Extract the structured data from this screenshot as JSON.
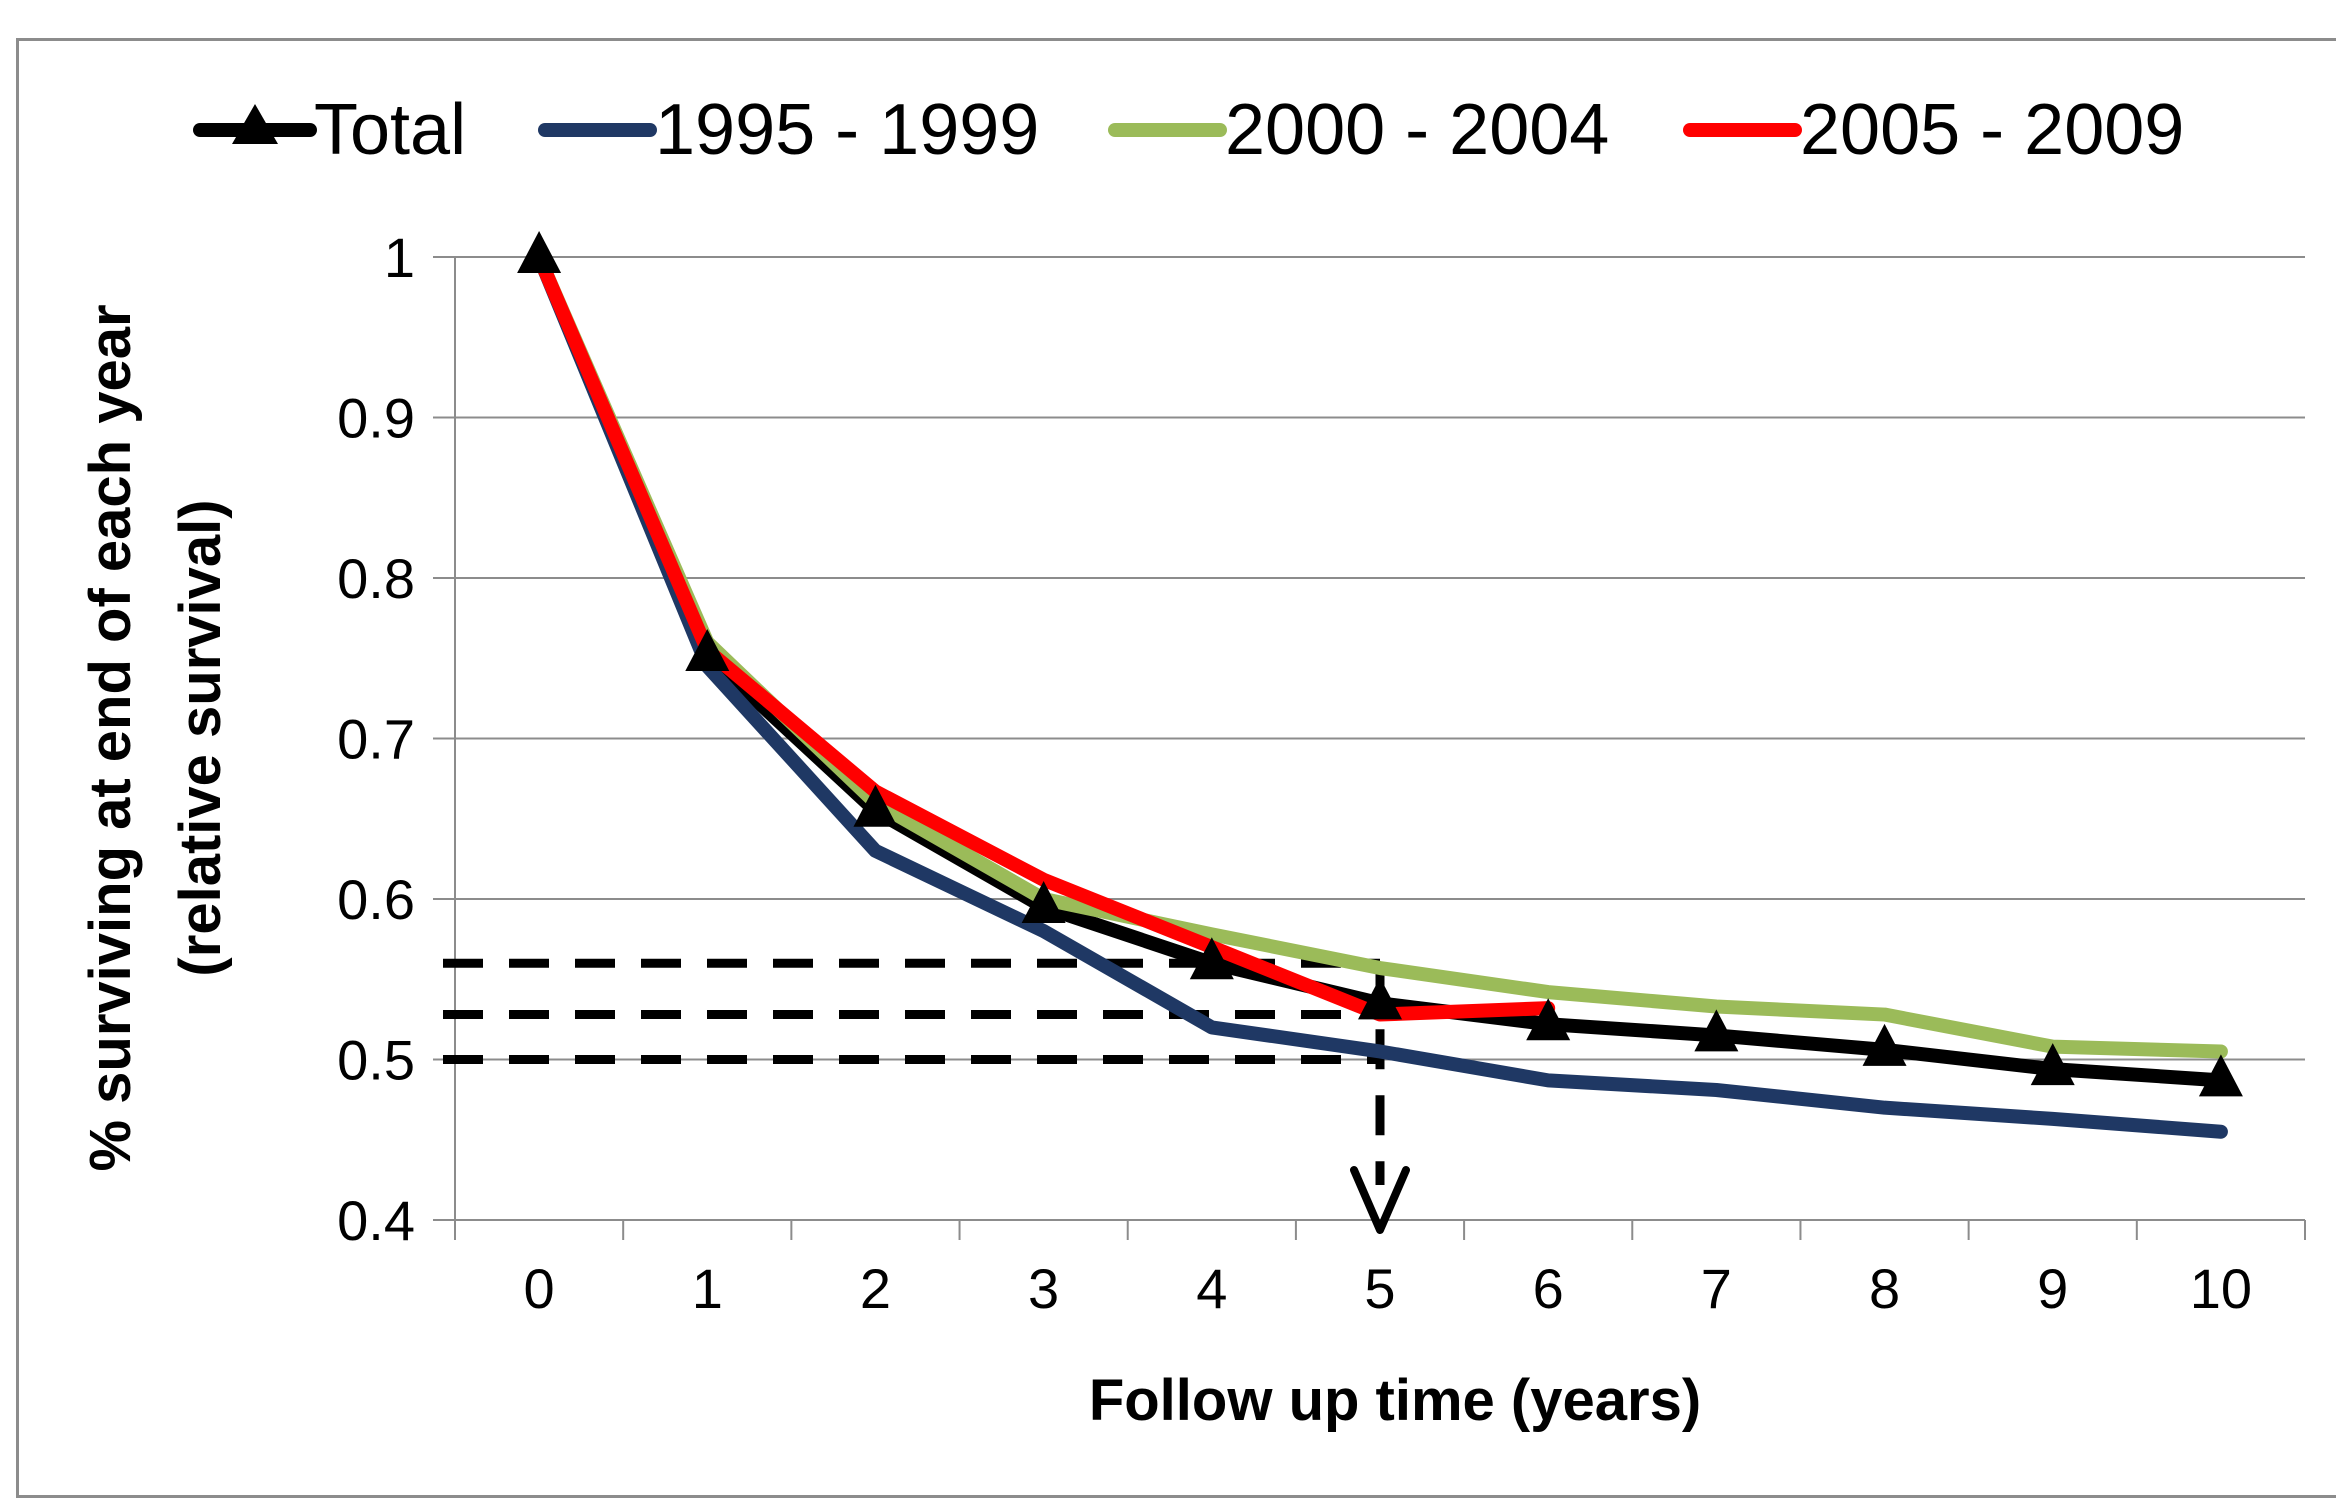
{
  "chart_data": {
    "type": "line",
    "xlabel": "Follow up time (years)",
    "ylabel_line1": "% surviving at end of each year",
    "ylabel_line2": "(relative survival)",
    "xlim": [
      -0.5,
      10.5
    ],
    "ylim": [
      0.4,
      1.0
    ],
    "x_ticks": [
      0,
      1,
      2,
      3,
      4,
      5,
      6,
      7,
      8,
      9,
      10
    ],
    "y_ticks": [
      0.4,
      0.5,
      0.6,
      0.7,
      0.8,
      0.9,
      1.0
    ],
    "y_tick_labels": [
      "0.4",
      "0.5",
      "0.6",
      "0.7",
      "0.8",
      "0.9",
      "1"
    ],
    "grid": true,
    "legend_position": "top",
    "series": [
      {
        "name": "Total",
        "color": "#000000",
        "marker": "triangle",
        "x": [
          0,
          1,
          2,
          3,
          4,
          5,
          6,
          7,
          8,
          9,
          10
        ],
        "y": [
          1.0,
          0.752,
          0.655,
          0.595,
          0.56,
          0.535,
          0.522,
          0.515,
          0.506,
          0.494,
          0.487
        ]
      },
      {
        "name": "1995 - 1999",
        "color": "#1f3864",
        "marker": "none",
        "x": [
          0,
          1,
          2,
          3,
          4,
          5,
          6,
          7,
          8,
          9,
          10
        ],
        "y": [
          1.0,
          0.745,
          0.63,
          0.58,
          0.52,
          0.505,
          0.487,
          0.481,
          0.47,
          0.463,
          0.455
        ]
      },
      {
        "name": "2000 - 2004",
        "color": "#9bbb59",
        "marker": "none",
        "x": [
          0,
          1,
          2,
          3,
          4,
          5,
          6,
          7,
          8,
          9,
          10
        ],
        "y": [
          1.0,
          0.76,
          0.66,
          0.6,
          0.578,
          0.557,
          0.542,
          0.533,
          0.528,
          0.508,
          0.505
        ]
      },
      {
        "name": "2005 - 2009",
        "color": "#ff0000",
        "marker": "none",
        "x": [
          0,
          1,
          2,
          3,
          4,
          5,
          6
        ],
        "y": [
          1.0,
          0.755,
          0.667,
          0.612,
          0.57,
          0.528,
          0.532
        ]
      }
    ],
    "annotations": {
      "dashed_levels": [
        0.56,
        0.528,
        0.5
      ],
      "dashed_until_x": 5,
      "arrow_x": 5
    }
  }
}
